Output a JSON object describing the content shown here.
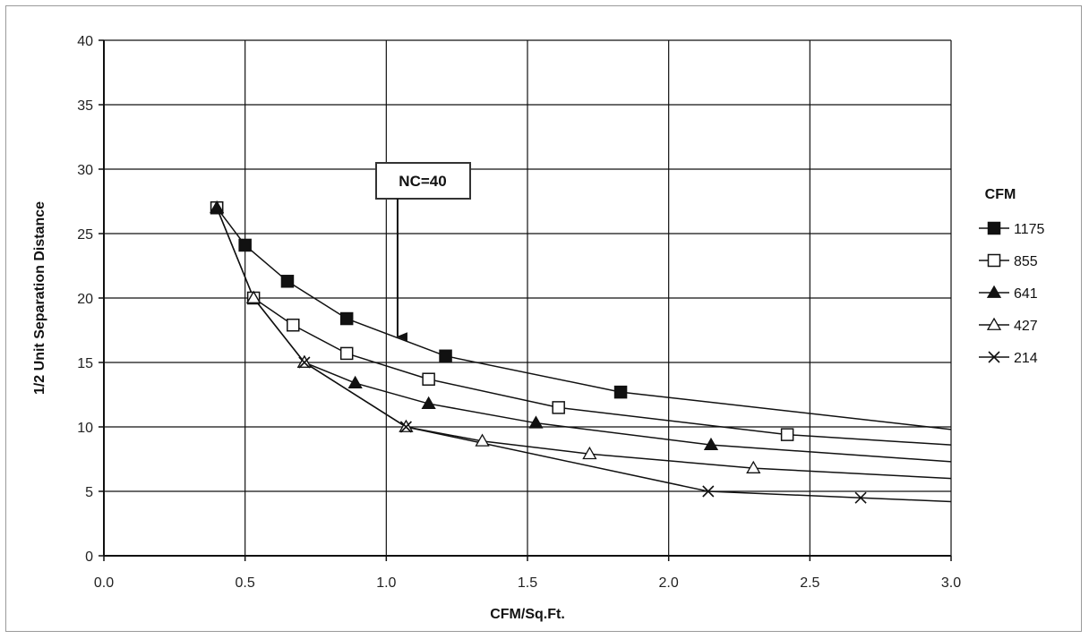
{
  "chart_data": {
    "type": "line",
    "xlabel": "CFM/Sq.Ft.",
    "ylabel": "1/2 Unit Separation Distance",
    "xlim": [
      0,
      3
    ],
    "ylim": [
      0,
      40
    ],
    "x_ticks": [
      "0.0",
      "0.5",
      "1.0",
      "1.5",
      "2.0",
      "2.5",
      "3.0"
    ],
    "y_ticks": [
      "0",
      "5",
      "10",
      "15",
      "20",
      "25",
      "30",
      "35",
      "40"
    ],
    "grid": true,
    "legend_title": "CFM",
    "legend_position": "right",
    "series": [
      {
        "name": "1175",
        "marker": "filled-square",
        "points": [
          [
            0.4,
            27.0
          ],
          [
            0.5,
            24.1
          ],
          [
            0.65,
            21.3
          ],
          [
            0.86,
            18.4
          ],
          [
            1.21,
            15.5
          ],
          [
            1.83,
            12.7
          ]
        ],
        "extends_to": [
          3.0,
          9.8
        ]
      },
      {
        "name": "855",
        "marker": "open-square",
        "points": [
          [
            0.4,
            27.0
          ],
          [
            0.53,
            20.0
          ],
          [
            0.67,
            17.9
          ],
          [
            0.86,
            15.7
          ],
          [
            1.15,
            13.7
          ],
          [
            1.61,
            11.5
          ],
          [
            2.42,
            9.4
          ]
        ],
        "extends_to": [
          3.0,
          8.6
        ]
      },
      {
        "name": "641",
        "marker": "filled-triangle",
        "points": [
          [
            0.4,
            27.0
          ],
          [
            0.53,
            20.0
          ],
          [
            0.71,
            15.0
          ],
          [
            0.89,
            13.4
          ],
          [
            1.15,
            11.8
          ],
          [
            1.53,
            10.3
          ],
          [
            2.15,
            8.6
          ]
        ],
        "extends_to": [
          3.0,
          7.3
        ]
      },
      {
        "name": "427",
        "marker": "open-triangle",
        "points": [
          [
            0.53,
            20.0
          ],
          [
            0.71,
            15.0
          ],
          [
            1.07,
            10.0
          ],
          [
            1.34,
            8.9
          ],
          [
            1.72,
            7.9
          ],
          [
            2.3,
            6.8
          ]
        ],
        "extends_to": [
          3.0,
          6.0
        ]
      },
      {
        "name": "214",
        "marker": "cross",
        "points": [
          [
            0.71,
            15.0
          ],
          [
            1.07,
            10.0
          ],
          [
            2.14,
            5.0
          ],
          [
            2.68,
            4.5
          ]
        ],
        "extends_to": [
          3.0,
          4.2
        ]
      }
    ],
    "annotations": [
      {
        "text": "NC=40",
        "arrow_to": [
          1.04,
          17.0
        ]
      }
    ]
  }
}
